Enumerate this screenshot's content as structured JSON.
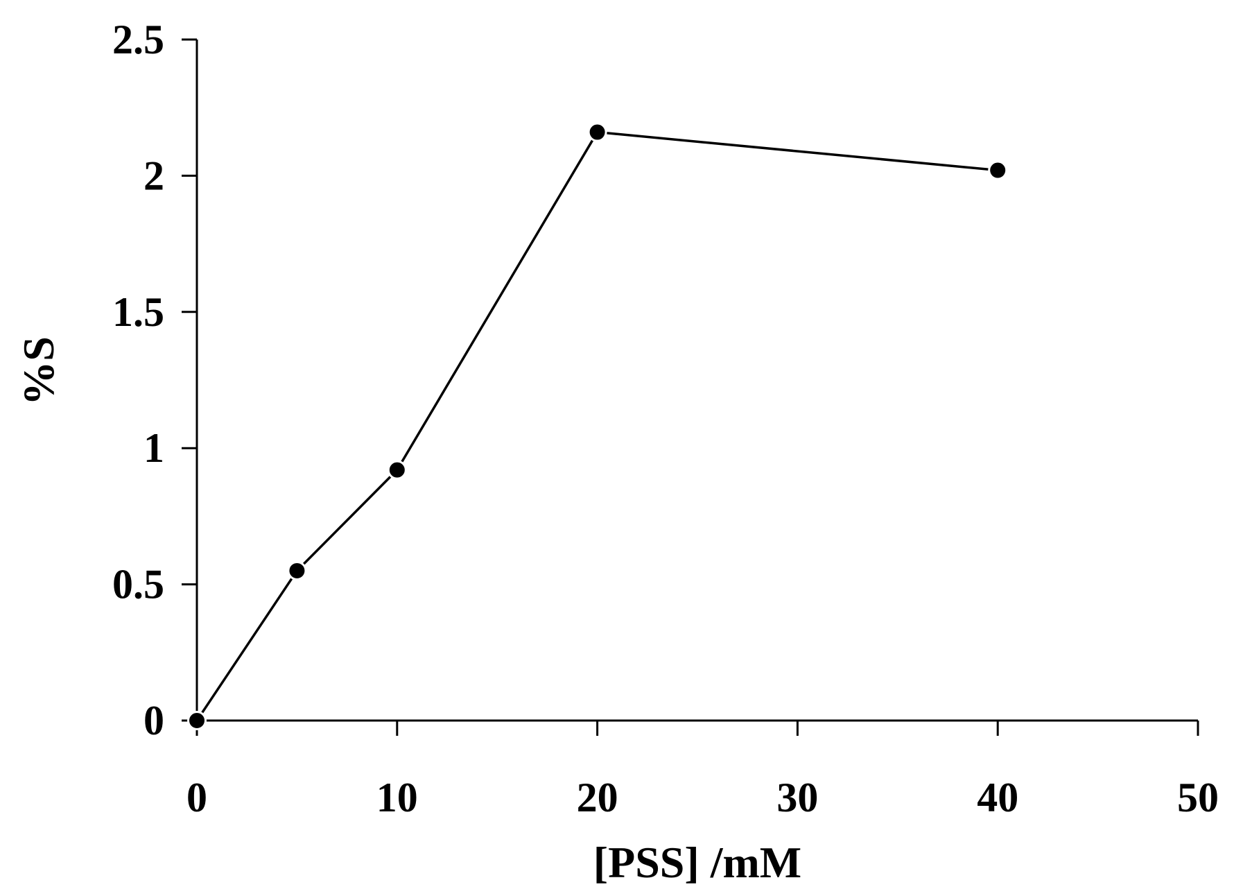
{
  "chart_data": {
    "type": "line",
    "title": "",
    "xlabel": "[PSS] /mM",
    "ylabel": "%S",
    "xlim": [
      0,
      50
    ],
    "ylim": [
      0,
      2.5
    ],
    "x_ticks": [
      0,
      10,
      20,
      30,
      40,
      50
    ],
    "x_tick_labels": [
      "0",
      "10",
      "20",
      "30",
      "40",
      "50"
    ],
    "y_ticks": [
      0,
      0.5,
      1,
      1.5,
      2,
      2.5
    ],
    "y_tick_labels": [
      "0",
      "0.5",
      "1",
      "1.5",
      "2",
      "2.5"
    ],
    "grid": false,
    "legend": "none",
    "series": [
      {
        "x": [
          0,
          5,
          10,
          20,
          40
        ],
        "y": [
          0,
          0.55,
          0.92,
          2.16,
          2.02
        ],
        "color": "#000000",
        "marker": "filled-circle"
      }
    ]
  }
}
